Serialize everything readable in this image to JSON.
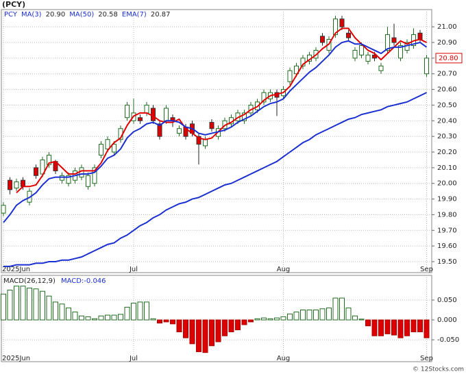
{
  "title": "(PCY)",
  "watermark": "© 12Stocks.com",
  "chart_data": [
    {
      "type": "candlestick",
      "symbol": "PCY",
      "last_label": "20.80",
      "up_color": "#1f6b1f",
      "down_color": "#dd0000",
      "grid": true,
      "categories": [
        "2025Jun",
        null,
        null,
        null,
        null,
        null,
        null,
        null,
        null,
        null,
        null,
        null,
        null,
        null,
        null,
        null,
        null,
        null,
        null,
        null,
        "Jul",
        null,
        null,
        null,
        null,
        null,
        null,
        null,
        null,
        null,
        null,
        null,
        null,
        null,
        null,
        null,
        null,
        null,
        null,
        null,
        null,
        null,
        null,
        "Aug",
        null,
        null,
        null,
        null,
        null,
        null,
        null,
        null,
        null,
        null,
        null,
        null,
        null,
        null,
        null,
        null,
        null,
        null,
        null,
        null,
        null,
        "Sep"
      ],
      "open": [
        19.81,
        20.02,
        19.97,
        20.02,
        19.88,
        20.1,
        20.06,
        20.12,
        20.14,
        20.02,
        20.0,
        20.02,
        20.04,
        19.98,
        20.0,
        20.18,
        20.22,
        20.2,
        20.28,
        20.42,
        20.4,
        20.42,
        20.45,
        20.48,
        20.38,
        20.4,
        20.42,
        20.32,
        20.36,
        20.38,
        20.3,
        20.24,
        20.39,
        20.3,
        20.35,
        20.38,
        20.4,
        20.4,
        20.45,
        20.47,
        20.52,
        20.54,
        20.58,
        20.56,
        20.65,
        20.7,
        20.75,
        20.78,
        20.8,
        20.94,
        20.85,
        20.95,
        21.05,
        20.96,
        20.8,
        20.82,
        20.78,
        20.82,
        20.72,
        20.85,
        20.93,
        20.8,
        20.85,
        20.88,
        20.96,
        20.7
      ],
      "high": [
        19.88,
        20.04,
        20.03,
        20.04,
        19.97,
        20.12,
        20.17,
        20.2,
        20.15,
        20.07,
        20.07,
        20.1,
        20.12,
        20.07,
        20.12,
        20.27,
        20.3,
        20.27,
        20.37,
        20.52,
        20.54,
        20.44,
        20.52,
        20.5,
        20.4,
        20.5,
        20.44,
        20.37,
        20.38,
        20.4,
        20.32,
        20.3,
        20.41,
        20.37,
        20.42,
        20.44,
        20.47,
        20.47,
        20.52,
        20.54,
        20.6,
        20.6,
        20.6,
        20.62,
        20.74,
        20.77,
        20.82,
        20.84,
        20.87,
        20.96,
        20.94,
        21.07,
        21.07,
        20.98,
        20.87,
        20.9,
        20.84,
        20.84,
        20.77,
        21.0,
        21.02,
        20.9,
        20.92,
        20.99,
        20.98,
        20.82
      ],
      "low": [
        19.79,
        19.93,
        19.95,
        19.96,
        19.86,
        20.03,
        20.04,
        20.1,
        20.06,
        20.0,
        19.98,
        20.0,
        20.02,
        19.96,
        19.98,
        20.16,
        20.2,
        20.18,
        20.26,
        20.4,
        20.38,
        20.38,
        20.43,
        20.38,
        20.28,
        20.38,
        20.36,
        20.3,
        20.28,
        20.3,
        20.12,
        20.22,
        20.33,
        20.28,
        20.33,
        20.36,
        20.38,
        20.38,
        20.43,
        20.45,
        20.5,
        20.52,
        20.43,
        20.54,
        20.63,
        20.68,
        20.73,
        20.76,
        20.78,
        20.88,
        20.83,
        20.93,
        20.98,
        20.91,
        20.78,
        20.8,
        20.76,
        20.78,
        20.7,
        20.83,
        20.88,
        20.78,
        20.83,
        20.86,
        20.9,
        20.68
      ],
      "close": [
        19.86,
        19.96,
        20.01,
        19.98,
        19.95,
        20.05,
        20.15,
        20.18,
        20.08,
        20.05,
        20.05,
        20.08,
        20.1,
        20.05,
        20.1,
        20.25,
        20.28,
        20.25,
        20.35,
        20.5,
        20.45,
        20.4,
        20.5,
        20.4,
        20.3,
        20.48,
        20.4,
        20.35,
        20.3,
        20.32,
        20.25,
        20.28,
        20.35,
        20.35,
        20.4,
        20.42,
        20.45,
        20.45,
        20.5,
        20.52,
        20.58,
        20.58,
        20.55,
        20.6,
        20.72,
        20.75,
        20.8,
        20.82,
        20.85,
        20.9,
        20.92,
        21.05,
        21.0,
        20.93,
        20.85,
        20.88,
        20.82,
        20.8,
        20.75,
        20.95,
        20.9,
        20.88,
        20.9,
        20.95,
        20.92,
        20.8
      ],
      "series": [
        {
          "name": "MA(3)",
          "value_label": "20.90",
          "color": "#e00000",
          "values": [
            null,
            null,
            19.94,
            19.98,
            19.98,
            19.99,
            20.05,
            20.13,
            20.14,
            20.1,
            20.06,
            20.06,
            20.08,
            20.08,
            20.08,
            20.13,
            20.21,
            20.26,
            20.29,
            20.37,
            20.43,
            20.45,
            20.45,
            20.43,
            20.4,
            20.39,
            20.39,
            20.41,
            20.35,
            20.32,
            20.29,
            20.28,
            20.29,
            20.33,
            20.37,
            20.39,
            20.42,
            20.44,
            20.47,
            20.49,
            20.53,
            20.56,
            20.57,
            20.58,
            20.62,
            20.69,
            20.76,
            20.79,
            20.82,
            20.86,
            20.89,
            20.96,
            20.99,
            20.99,
            20.93,
            20.89,
            20.85,
            20.83,
            20.79,
            20.83,
            20.87,
            20.91,
            20.89,
            20.91,
            20.92,
            20.9
          ]
        },
        {
          "name": "MA(50)",
          "value_label": "20.58",
          "color": "#1a2fd0",
          "values": [
            19.47,
            19.47,
            19.48,
            19.48,
            19.48,
            19.49,
            19.49,
            19.5,
            19.5,
            19.51,
            19.51,
            19.52,
            19.53,
            19.55,
            19.57,
            19.59,
            19.61,
            19.62,
            19.65,
            19.67,
            19.7,
            19.73,
            19.75,
            19.78,
            19.8,
            19.83,
            19.85,
            19.87,
            19.88,
            19.9,
            19.91,
            19.93,
            19.95,
            19.97,
            19.99,
            20.0,
            20.02,
            20.04,
            20.06,
            20.08,
            20.1,
            20.12,
            20.14,
            20.17,
            20.2,
            20.23,
            20.26,
            20.28,
            20.31,
            20.33,
            20.35,
            20.37,
            20.39,
            20.41,
            20.42,
            20.44,
            20.45,
            20.46,
            20.47,
            20.49,
            20.5,
            20.51,
            20.52,
            20.54,
            20.56,
            20.58
          ]
        },
        {
          "name": "EMA(7)",
          "value_label": "20.87",
          "color": "#1a2fd0",
          "values": [
            19.75,
            19.8,
            19.86,
            19.89,
            19.91,
            19.94,
            19.99,
            20.03,
            20.04,
            20.04,
            20.04,
            20.05,
            20.06,
            20.06,
            20.07,
            20.11,
            20.16,
            20.18,
            20.22,
            20.29,
            20.33,
            20.35,
            20.38,
            20.39,
            20.37,
            20.4,
            20.4,
            20.39,
            20.36,
            20.35,
            20.32,
            20.31,
            20.32,
            20.33,
            20.34,
            20.36,
            20.39,
            20.41,
            20.43,
            20.46,
            20.49,
            20.51,
            20.52,
            20.54,
            20.59,
            20.63,
            20.67,
            20.71,
            20.74,
            20.78,
            20.82,
            20.87,
            20.9,
            20.91,
            20.89,
            20.89,
            20.87,
            20.85,
            20.83,
            20.86,
            20.87,
            20.87,
            20.88,
            20.89,
            20.9,
            20.87
          ]
        }
      ],
      "ylim": [
        19.43,
        21.11
      ],
      "yticks": [
        {
          "value": 19.5,
          "label": "19.50"
        },
        {
          "value": 19.6,
          "label": "19.60"
        },
        {
          "value": 19.7,
          "label": "19.70"
        },
        {
          "value": 19.8,
          "label": "19.80"
        },
        {
          "value": 19.9,
          "label": "19.90"
        },
        {
          "value": 20.0,
          "label": "20.00"
        },
        {
          "value": 20.1,
          "label": "20.10"
        },
        {
          "value": 20.2,
          "label": "20.20"
        },
        {
          "value": 20.3,
          "label": "20.30"
        },
        {
          "value": 20.4,
          "label": "20.40"
        },
        {
          "value": 20.5,
          "label": "20.50"
        },
        {
          "value": 20.6,
          "label": "20.60"
        },
        {
          "value": 20.7,
          "label": "20.70"
        },
        {
          "value": 20.8,
          "label": "20.80"
        },
        {
          "value": 20.9,
          "label": "20.90"
        },
        {
          "value": 21.0,
          "label": "21.00"
        }
      ]
    },
    {
      "type": "bar",
      "title": "MACD(26,12,9)",
      "legend_label": "MACD:-0.046",
      "up_color": "#1f6b1f",
      "down_color": "#dd0000",
      "grid": true,
      "categories": [
        "2025Jun",
        null,
        null,
        null,
        null,
        null,
        null,
        null,
        null,
        null,
        null,
        null,
        null,
        null,
        null,
        null,
        null,
        null,
        null,
        null,
        "Jul",
        null,
        null,
        null,
        null,
        null,
        null,
        null,
        null,
        null,
        null,
        null,
        null,
        null,
        null,
        null,
        null,
        null,
        null,
        null,
        null,
        null,
        null,
        "Aug",
        null,
        null,
        null,
        null,
        null,
        null,
        null,
        null,
        null,
        null,
        null,
        null,
        null,
        null,
        null,
        null,
        null,
        null,
        null,
        null,
        null,
        "Sep"
      ],
      "values": [
        0.065,
        0.075,
        0.085,
        0.085,
        0.08,
        0.078,
        0.072,
        0.06,
        0.045,
        0.04,
        0.03,
        0.02,
        0.01,
        0.008,
        0.003,
        0.01,
        0.012,
        0.012,
        0.014,
        0.032,
        0.042,
        0.045,
        0.045,
        0.003,
        -0.008,
        -0.005,
        -0.01,
        -0.03,
        -0.045,
        -0.06,
        -0.08,
        -0.082,
        -0.065,
        -0.055,
        -0.04,
        -0.03,
        -0.025,
        -0.012,
        -0.005,
        0.003,
        0.005,
        0.003,
        0.005,
        0.008,
        0.015,
        0.02,
        0.025,
        0.025,
        0.025,
        0.028,
        0.03,
        0.055,
        0.055,
        0.03,
        0.01,
        0.002,
        -0.015,
        -0.04,
        -0.04,
        -0.035,
        -0.038,
        -0.045,
        -0.04,
        -0.03,
        -0.03,
        -0.045
      ],
      "ylim": [
        -0.105,
        0.112
      ],
      "yticks": [
        {
          "value": 0.05,
          "label": "0.050"
        },
        {
          "value": 0,
          "label": "0.000"
        },
        {
          "value": -0.05,
          "label": "-0.050"
        }
      ]
    }
  ]
}
